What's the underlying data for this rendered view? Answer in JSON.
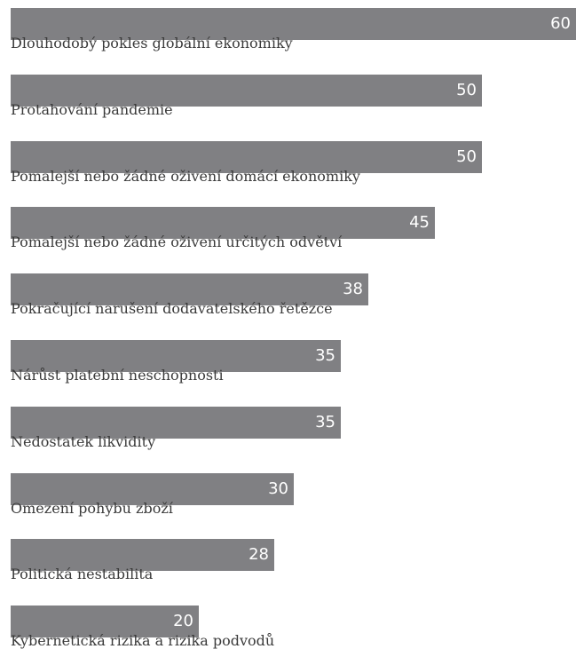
{
  "chart_data": {
    "type": "bar",
    "orientation": "horizontal",
    "categories": [
      "Dlouhodobý pokles globální ekonomiky",
      "Protahování pandemie",
      "Pomalejší nebo žádné oživení domácí ekonomiky",
      "Pomalejší nebo žádné oživení určitých odvětví",
      "Pokračující narušení dodavatelského řetězce",
      "Nárůst platební neschopnosti",
      "Nedostatek likvidity",
      "Omezení pohybu zboží",
      "Politická nestabilita",
      "Kybernetická rizika a rizika podvodů"
    ],
    "values": [
      60,
      50,
      50,
      45,
      38,
      35,
      35,
      30,
      28,
      20
    ],
    "value_labels": [
      "60",
      "50",
      "50",
      "45",
      "38",
      "35",
      "35",
      "30",
      "28",
      "20"
    ],
    "xlim": [
      0,
      60
    ],
    "grid": false,
    "bar_color": "#808083",
    "label_color": "#3a3a3a",
    "value_label_color": "#ffffff"
  }
}
